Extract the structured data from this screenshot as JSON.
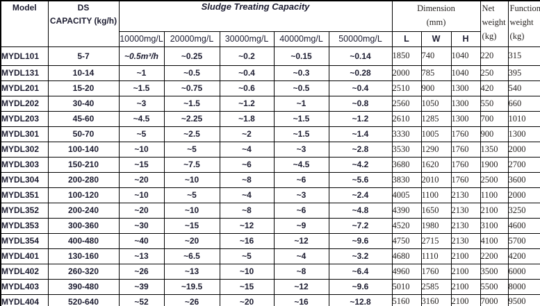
{
  "header": {
    "model": "Model",
    "ds_line1": "DS",
    "ds_line2": "CAPACITY (kg/h)",
    "sludge_title": "Sludge Treating Capacity",
    "concentrations": [
      "10000mg/L",
      "20000mg/L",
      "30000mg/L",
      "40000mg/L",
      "50000mg/L"
    ],
    "dimension_line1": "Dimension",
    "dimension_line2": "(mm)",
    "dim_axes": [
      "L",
      "W",
      "H"
    ],
    "net_weight_lines": [
      "Net",
      "weight",
      "(kg)"
    ],
    "function_weight_lines": [
      "Function",
      "weight",
      "(kg)"
    ]
  },
  "rows": [
    {
      "model": "MYDL101",
      "cells": [
        "5-7",
        "~0.5m³/h",
        "~0.25",
        "~0.2",
        "~0.15",
        "~0.14",
        "1850",
        "740",
        "1040",
        "220",
        "315"
      ]
    },
    {
      "model": "MYDL131",
      "cells": [
        "10-14",
        "~1",
        "~0.5",
        "~0.4",
        "~0.3",
        "~0.28",
        "2000",
        "785",
        "1040",
        "250",
        "395"
      ]
    },
    {
      "model": "MYDL201",
      "cells": [
        "15-20",
        "~1.5",
        "~0.75",
        "~0.6",
        "~0.5",
        "~0.4",
        "2510",
        "900",
        "1300",
        "420",
        "540"
      ]
    },
    {
      "model": "MYDL202",
      "cells": [
        "30-40",
        "~3",
        "~1.5",
        "~1.2",
        "~1",
        "~0.8",
        "2560",
        "1050",
        "1300",
        "550",
        "660"
      ]
    },
    {
      "model": "MYDL203",
      "cells": [
        "45-60",
        "~4.5",
        "~2.25",
        "~1.8",
        "~1.5",
        "~1.2",
        "2610",
        "1285",
        "1300",
        "700",
        "1010"
      ]
    },
    {
      "model": "MYDL301",
      "cells": [
        "50-70",
        "~5",
        "~2.5",
        "~2",
        "~1.5",
        "~1.4",
        "3330",
        "1005",
        "1760",
        "900",
        "1300"
      ]
    },
    {
      "model": "MYDL302",
      "cells": [
        "100-140",
        "~10",
        "~5",
        "~4",
        "~3",
        "~2.8",
        "3530",
        "1290",
        "1760",
        "1350",
        "2000"
      ]
    },
    {
      "model": "MYDL303",
      "cells": [
        "150-210",
        "~15",
        "~7.5",
        "~6",
        "~4.5",
        "~4.2",
        "3680",
        "1620",
        "1760",
        "1900",
        "2700"
      ]
    },
    {
      "model": "MYDL304",
      "cells": [
        "200-280",
        "~20",
        "~10",
        "~8",
        "~6",
        "~5.6",
        "3830",
        "2010",
        "1760",
        "2500",
        "3600"
      ]
    },
    {
      "model": "MYDL351",
      "cells": [
        "100-120",
        "~10",
        "~5",
        "~4",
        "~3",
        "~2.4",
        "4005",
        "1100",
        "2130",
        "1100",
        "2000"
      ]
    },
    {
      "model": "MYDL352",
      "cells": [
        "200-240",
        "~20",
        "~10",
        "~8",
        "~6",
        "~4.8",
        "4390",
        "1650",
        "2130",
        "2100",
        "3250"
      ]
    },
    {
      "model": "MYDL353",
      "cells": [
        "300-360",
        "~30",
        "~15",
        "~12",
        "~9",
        "~7.2",
        "4520",
        "1980",
        "2130",
        "3100",
        "4600"
      ]
    },
    {
      "model": "MYDL354",
      "cells": [
        "400-480",
        "~40",
        "~20",
        "~16",
        "~12",
        "~9.6",
        "4750",
        "2715",
        "2130",
        "4100",
        "5700"
      ]
    },
    {
      "model": "MYDL401",
      "cells": [
        "130-160",
        "~13",
        "~6.5",
        "~5",
        "~4",
        "~3.2",
        "4680",
        "1110",
        "2100",
        "2200",
        "4200"
      ]
    },
    {
      "model": "MYDL402",
      "cells": [
        "260-320",
        "~26",
        "~13",
        "~10",
        "~8",
        "~6.4",
        "4960",
        "1760",
        "2100",
        "3500",
        "6000"
      ]
    },
    {
      "model": "MYDL403",
      "cells": [
        "390-480",
        "~39",
        "~19.5",
        "~15",
        "~12",
        "~9.6",
        "5010",
        "2585",
        "2100",
        "5500",
        "8000"
      ]
    },
    {
      "model": "MYDL404",
      "cells": [
        "520-640",
        "~52",
        "~26",
        "~20",
        "~16",
        "~12.8",
        "5160",
        "3160",
        "2100",
        "7000",
        "9500"
      ]
    }
  ]
}
